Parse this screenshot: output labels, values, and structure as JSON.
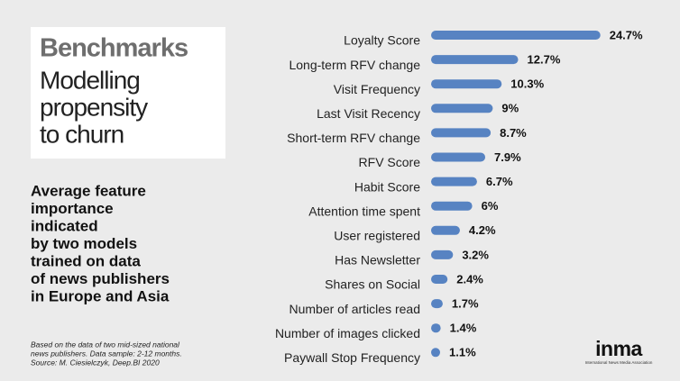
{
  "chart_data": {
    "type": "bar",
    "orientation": "horizontal",
    "title": "Benchmarks",
    "subtitle_lines": [
      "Modelling",
      "propensity",
      "to churn"
    ],
    "description_lines": [
      "Average feature",
      "importance",
      "indicated",
      "by two models",
      "trained on data",
      "of news publishers",
      "in Europe and Asia"
    ],
    "footnote_lines": [
      "Based on the data of two mid-sized national",
      "news publishers. Data sample: 2-12 months.",
      "Source: M. Ciesielczyk, Deep.BI 2020"
    ],
    "logo": "inma",
    "logo_caption": "International News Media Association",
    "color": "#5783c2",
    "categories": [
      "Loyalty Score",
      "Long-term RFV change",
      "Visit Frequency",
      "Last Visit Recency",
      "Short-term RFV change",
      "RFV Score",
      "Habit Score",
      "Attention time spent",
      "User registered",
      "Has Newsletter",
      "Shares on Social",
      "Number of articles read",
      "Number of images clicked",
      "Paywall Stop Frequency"
    ],
    "values": [
      24.7,
      12.7,
      10.3,
      9,
      8.7,
      7.9,
      6.7,
      6,
      4.2,
      3.2,
      2.4,
      1.7,
      1.4,
      1.1
    ],
    "value_labels": [
      "24.7%",
      "12.7%",
      "10.3%",
      "9%",
      "8.7%",
      "7.9%",
      "6.7%",
      "6%",
      "4.2%",
      "3.2%",
      "2.4%",
      "1.7%",
      "1.4%",
      "1.1%"
    ]
  }
}
